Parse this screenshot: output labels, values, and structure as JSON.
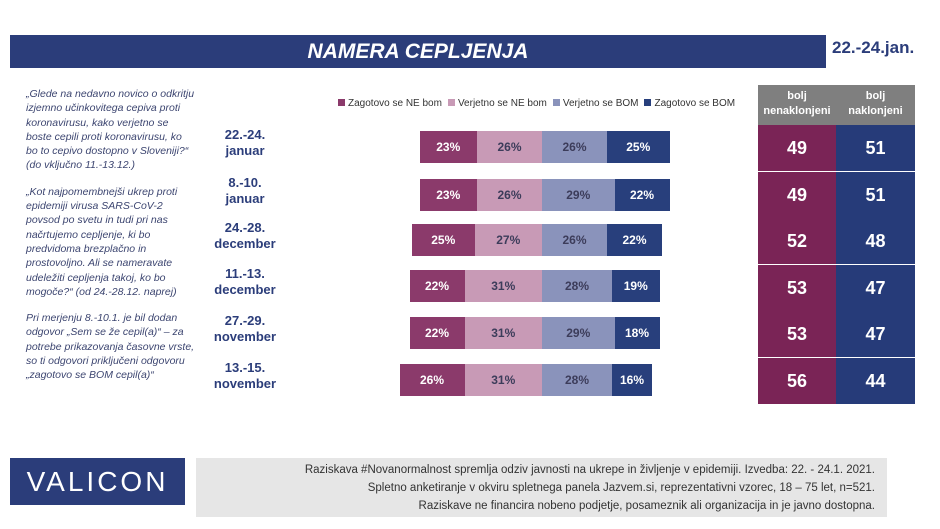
{
  "title": "NAMERA CEPLJENJA",
  "date": "22.-24.jan.",
  "question": [
    "„Glede na nedavno novico o odkritju izjemno učinkovitega cepiva proti koronavirusu, kako verjetno se boste cepili proti koronavirusu, ko bo to cepivo dostopno v Sloveniji?“ (do vključno 11.-13.12.)",
    "„Kot najpomembnejši ukrep proti epidemiji virusa SARS-CoV-2 povsod po svetu in tudi pri nas načrtujemo cepljenje, ki bo predvidoma brezplačno in prostovoljno. Ali se nameravate udeležiti cepljenja takoj, ko bo mogoče?“ (od 24.-28.12. naprej)",
    "Pri merjenju 8.-10.1. je bil dodan odgovor „Sem se že cepil(a)“ – za potrebe prikazovanja časovne vrste, so ti odgovori priključeni odgovoru „zagotovo se BOM cepil(a)“"
  ],
  "chart_data": {
    "type": "bar",
    "subtype": "diverging-stacked-horizontal",
    "categories": [
      [
        "22.-24.",
        "januar"
      ],
      [
        "8.-10.",
        "januar"
      ],
      [
        "24.-28.",
        "december"
      ],
      [
        "11.-13.",
        "december"
      ],
      [
        "27.-29.",
        "november"
      ],
      [
        "13.-15.",
        "november"
      ]
    ],
    "series": [
      {
        "name": "Zagotovo se NE bom",
        "color": "#8b3a6b",
        "text": "#ffffff",
        "values": [
          23,
          23,
          25,
          22,
          22,
          26
        ]
      },
      {
        "name": "Verjetno se NE bom",
        "color": "#c89ab6",
        "text": "#3c3c5a",
        "values": [
          26,
          26,
          27,
          31,
          31,
          31
        ]
      },
      {
        "name": "Verjetno se BOM",
        "color": "#8a93bb",
        "text": "#3c3c5a",
        "values": [
          26,
          29,
          26,
          28,
          29,
          28
        ]
      },
      {
        "name": "Zagotovo se BOM",
        "color": "#283f7c",
        "text": "#ffffff",
        "values": [
          25,
          22,
          22,
          19,
          18,
          16
        ]
      }
    ],
    "legend": "top",
    "unit": "%"
  },
  "summary": {
    "headers": [
      [
        "bolj",
        "nenaklonjeni"
      ],
      [
        "bolj",
        "naklonjeni"
      ]
    ],
    "colors": [
      "#7a2456",
      "#263b79"
    ],
    "nenaklonjeni": [
      49,
      49,
      52,
      53,
      53,
      56
    ],
    "naklonjeni": [
      51,
      51,
      48,
      47,
      47,
      44
    ]
  },
  "logo": "VALICON",
  "footer": [
    "Raziskava #Novanormalnost spremlja odziv javnosti na ukrepe in življenje v epidemiji. Izvedba: 22. - 24.1. 2021.",
    "Spletno anketiranje v okviru spletnega panela Jazvem.si, reprezentativni vzorec, 18 – 75 let, n=521.",
    "Raziskave ne financira nobeno podjetje, posameznik ali organizacija in je javno dostopna."
  ]
}
